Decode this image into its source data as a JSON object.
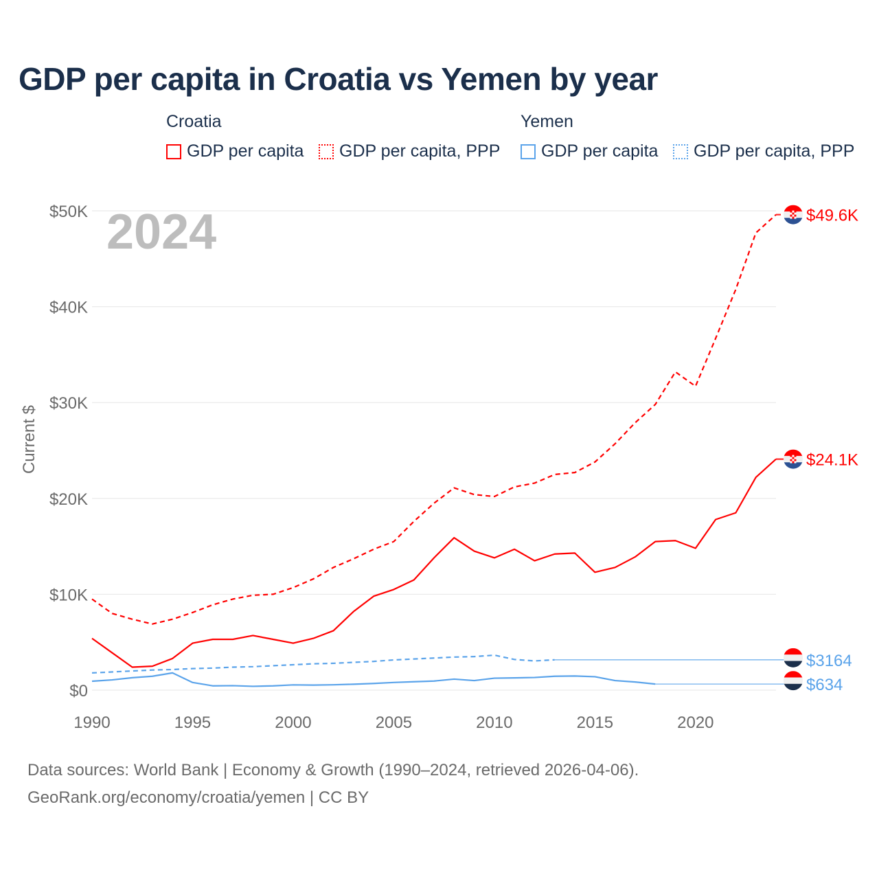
{
  "title": "GDP per capita in Croatia vs Yemen by year",
  "legend": {
    "groups": [
      {
        "name": "Croatia",
        "items": [
          "GDP per capita",
          "GDP per capita, PPP"
        ]
      },
      {
        "name": "Yemen",
        "items": [
          "GDP per capita",
          "GDP per capita, PPP"
        ]
      }
    ]
  },
  "year_label": "2024",
  "footer": {
    "line1": "Data sources: World Bank | Economy & Growth (1990–2024, retrieved 2026-04-06).",
    "line2": "GeoRank.org/economy/croatia/yemen | CC BY"
  },
  "chart_data": {
    "type": "line",
    "title": "GDP per capita in Croatia vs Yemen by year",
    "xlabel": "",
    "ylabel": "Current $",
    "xlim": [
      1990,
      2024
    ],
    "ylim": [
      0,
      50000
    ],
    "x_ticks": [
      1990,
      1995,
      2000,
      2005,
      2010,
      2015,
      2020
    ],
    "y_ticks": [
      0,
      10000,
      20000,
      30000,
      40000,
      50000
    ],
    "y_tick_labels": [
      "$0",
      "$10K",
      "$20K",
      "$30K",
      "$40K",
      "$50K"
    ],
    "grid": true,
    "legend_position": "top",
    "x": [
      1990,
      1991,
      1992,
      1993,
      1994,
      1995,
      1996,
      1997,
      1998,
      1999,
      2000,
      2001,
      2002,
      2003,
      2004,
      2005,
      2006,
      2007,
      2008,
      2009,
      2010,
      2011,
      2012,
      2013,
      2014,
      2015,
      2016,
      2017,
      2018,
      2019,
      2020,
      2021,
      2022,
      2023,
      2024
    ],
    "series": [
      {
        "name": "Croatia GDP per capita",
        "color": "#ff0000",
        "dash": false,
        "end_label": "$24.1K",
        "flag": "croatia",
        "values": [
          5400,
          3900,
          2400,
          2500,
          3300,
          4900,
          5300,
          5300,
          5700,
          5300,
          4900,
          5400,
          6200,
          8200,
          9800,
          10500,
          11500,
          13800,
          15900,
          14500,
          13800,
          14700,
          13500,
          14200,
          14300,
          12300,
          12800,
          13900,
          15500,
          15600,
          14800,
          17800,
          18500,
          22200,
          24100
        ]
      },
      {
        "name": "Croatia GDP per capita, PPP",
        "color": "#ff0000",
        "dash": true,
        "end_label": "$49.6K",
        "flag": "croatia",
        "values": [
          9500,
          8000,
          7400,
          6900,
          7400,
          8100,
          8900,
          9500,
          9900,
          10000,
          10700,
          11600,
          12800,
          13700,
          14700,
          15500,
          17600,
          19500,
          21100,
          20400,
          20200,
          21200,
          21600,
          22500,
          22700,
          23800,
          25700,
          27900,
          29800,
          33200,
          31700,
          36700,
          41800,
          47700,
          49600
        ]
      },
      {
        "name": "Yemen GDP per capita",
        "color": "#5aa3ea",
        "dash": false,
        "end_label": "$634",
        "flag": "yemen",
        "values": [
          930,
          1070,
          1300,
          1450,
          1800,
          800,
          450,
          470,
          400,
          450,
          550,
          530,
          560,
          620,
          700,
          800,
          880,
          950,
          1150,
          1000,
          1250,
          1280,
          1320,
          1450,
          1480,
          1400,
          1000,
          850,
          634,
          null,
          null,
          null,
          null,
          null,
          634
        ]
      },
      {
        "name": "Yemen GDP per capita, PPP",
        "color": "#5aa3ea",
        "dash": true,
        "end_label": "$3164",
        "flag": "yemen",
        "values": [
          1800,
          1900,
          2000,
          2100,
          2150,
          2250,
          2300,
          2400,
          2450,
          2550,
          2650,
          2750,
          2800,
          2900,
          3000,
          3150,
          3250,
          3350,
          3450,
          3500,
          3650,
          3200,
          3050,
          3164,
          null,
          null,
          null,
          null,
          null,
          null,
          null,
          null,
          null,
          null,
          3164
        ]
      }
    ]
  }
}
